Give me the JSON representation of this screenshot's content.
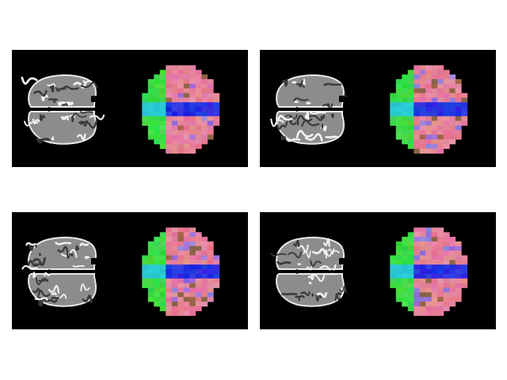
{
  "figure": {
    "background": "#ffffff",
    "panel_background": "#000000",
    "panels": [
      {
        "id": "top-left"
      },
      {
        "id": "top-right"
      },
      {
        "id": "bottom-left"
      },
      {
        "id": "bottom-right"
      }
    ],
    "colors": {
      "anatomy_gray": "#9a9a9a",
      "frontal_green": "#33dd44",
      "midline_blue": "#2a2ae0",
      "cortex_pink": "#e98a9a"
    }
  }
}
